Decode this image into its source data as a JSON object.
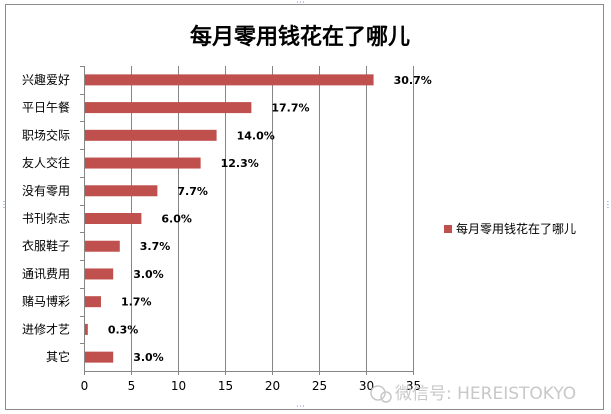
{
  "chart_data": {
    "type": "bar",
    "orientation": "horizontal",
    "title": "每月零用钱花在了哪儿",
    "categories": [
      "兴趣爱好",
      "平日午餐",
      "职场交际",
      "友人交往",
      "没有零用",
      "书刊杂志",
      "衣服鞋子",
      "通讯费用",
      "赌马博彩",
      "进修才艺",
      "其它"
    ],
    "series": [
      {
        "name": "每月零用钱花在了哪儿",
        "values": [
          30.7,
          17.7,
          14.0,
          12.3,
          7.7,
          6.0,
          3.7,
          3.0,
          1.7,
          0.3,
          3.0
        ],
        "labels": [
          "30.7%",
          "17.7%",
          "14.0%",
          "12.3%",
          "7.7%",
          "6.0%",
          "3.7%",
          "3.0%",
          "1.7%",
          "0.3%",
          "3.0%"
        ],
        "color": "#c0504d"
      }
    ],
    "xlim": [
      0,
      35
    ],
    "xticks": [
      "0",
      "5",
      "10",
      "15",
      "20",
      "25",
      "30",
      "35"
    ],
    "grid": true,
    "legend": "right"
  },
  "watermark": {
    "text": "微信号: HEREISTOKYO"
  },
  "colors": {
    "bar": "#c0504d",
    "grid": "#868686",
    "frame": "#8c8c8c"
  }
}
